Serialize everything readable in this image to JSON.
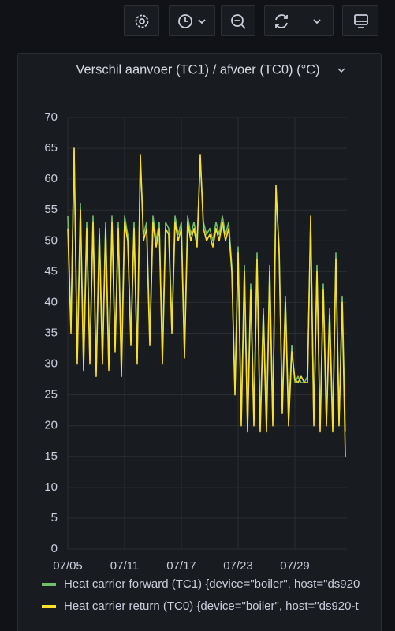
{
  "chart_data": {
    "type": "line",
    "title": "Verschil aanvoer (TC1) / afvoer (TC0) (°C)",
    "categories": [
      "07/05",
      null,
      null,
      null,
      null,
      null,
      null,
      null,
      null,
      null,
      null,
      null,
      null,
      null,
      null,
      null,
      null,
      null,
      "07/11",
      null,
      null,
      null,
      null,
      null,
      null,
      null,
      null,
      null,
      null,
      null,
      null,
      null,
      null,
      null,
      null,
      null,
      "07/17",
      null,
      null,
      null,
      null,
      null,
      null,
      null,
      null,
      null,
      null,
      null,
      null,
      null,
      null,
      null,
      null,
      null,
      "07/23",
      null,
      null,
      null,
      null,
      null,
      null,
      null,
      null,
      null,
      null,
      null,
      null,
      null,
      null,
      null,
      null,
      null,
      "07/29",
      null,
      null,
      null,
      null,
      null,
      null,
      null,
      null,
      null,
      null,
      null,
      null,
      null,
      null,
      null,
      null
    ],
    "series": [
      {
        "name": "Heat carrier forward (TC1) {device=\"boiler\", host=\"ds920",
        "color": "#73bf69",
        "values": [
          54,
          36,
          65,
          31,
          56,
          30,
          53,
          31,
          54,
          29,
          52,
          31,
          53,
          30,
          54,
          33,
          53,
          29,
          54,
          51,
          34,
          53,
          31,
          63,
          51,
          53,
          34,
          54,
          50,
          53,
          31,
          53,
          52,
          36,
          54,
          51,
          53,
          32,
          54,
          51,
          53,
          50,
          63,
          53,
          51,
          52,
          50,
          53,
          51,
          54,
          51,
          53,
          46,
          26,
          49,
          21,
          46,
          20,
          43,
          21,
          48,
          20,
          39,
          20,
          46,
          21,
          58,
          49,
          23,
          41,
          21,
          33,
          27,
          28,
          27,
          27,
          28,
          53,
          21,
          46,
          20,
          43,
          21,
          39,
          20,
          48,
          21,
          41,
          19
        ]
      },
      {
        "name": "Heat carrier return (TC0) {device=\"boiler\", host=\"ds920-t",
        "color": "#fade2a",
        "values": [
          52,
          35,
          65,
          30,
          55,
          29,
          52,
          30,
          53,
          28,
          51,
          30,
          52,
          29,
          53,
          32,
          52,
          28,
          53,
          50,
          33,
          52,
          30,
          64,
          50,
          52,
          33,
          53,
          49,
          52,
          30,
          52,
          51,
          35,
          53,
          50,
          52,
          31,
          53,
          50,
          52,
          49,
          64,
          52,
          50,
          51,
          49,
          52,
          50,
          53,
          50,
          52,
          45,
          25,
          48,
          20,
          45,
          19,
          42,
          20,
          47,
          19,
          38,
          19,
          45,
          20,
          59,
          48,
          22,
          40,
          20,
          32,
          27.5,
          27,
          28,
          27,
          27,
          54,
          20,
          45,
          19,
          42,
          20,
          38,
          19,
          47,
          20,
          40,
          15
        ]
      }
    ],
    "ylim": [
      0,
      70
    ],
    "yticks": [
      0,
      5,
      10,
      15,
      20,
      25,
      30,
      35,
      40,
      45,
      50,
      55,
      60,
      65,
      70
    ],
    "grid": true
  }
}
